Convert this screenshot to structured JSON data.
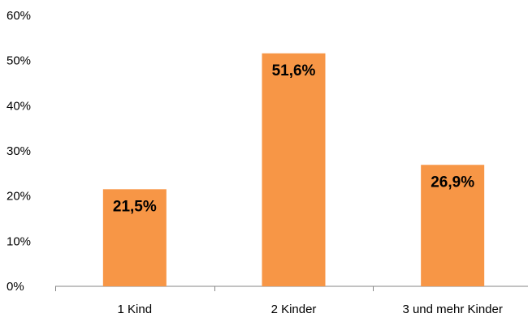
{
  "chart_data": {
    "type": "bar",
    "categories": [
      "1 Kind",
      "2 Kinder",
      "3 und mehr Kinder"
    ],
    "values": [
      21.5,
      51.6,
      26.9
    ],
    "data_labels": [
      "21,5%",
      "51,6%",
      "26,9%"
    ],
    "title": "",
    "xlabel": "",
    "ylabel": "",
    "ylim": [
      0,
      60
    ],
    "y_ticks": [
      0,
      10,
      20,
      30,
      40,
      50,
      60
    ],
    "y_tick_labels": [
      "0%",
      "10%",
      "20%",
      "30%",
      "40%",
      "50%",
      "60%"
    ],
    "grid": false,
    "legend": "none",
    "bar_color": "#F79646",
    "axis_color": "#868686",
    "text_color": "#000000"
  }
}
